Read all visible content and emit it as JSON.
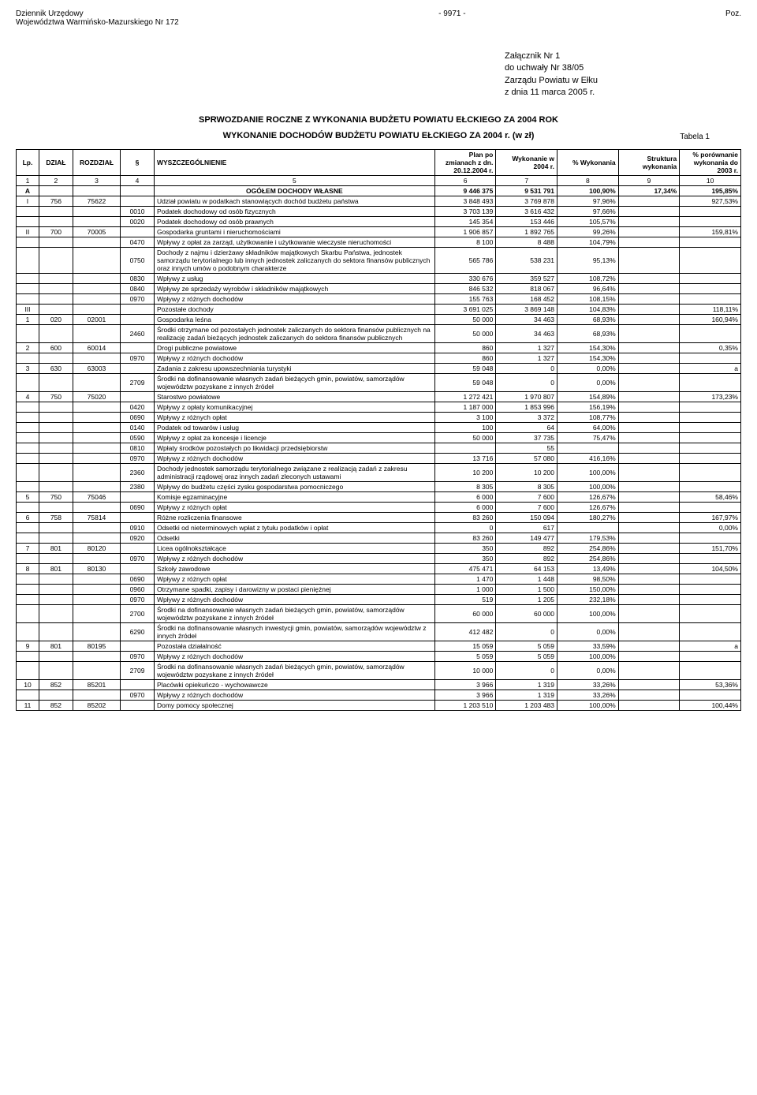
{
  "header": {
    "left1": "Dziennik Urzędowy",
    "left2": "Województwa Warmińsko-Mazurskiego Nr 172",
    "center": "- 9971 -",
    "right": "Poz."
  },
  "attachment": {
    "line1": "Załącznik Nr 1",
    "line2": "do uchwały Nr 38/05",
    "line3": "Zarządu Powiatu w Ełku",
    "line4": "z dnia 11 marca 2005 r."
  },
  "titles": {
    "main": "SPRWOZDANIE ROCZNE Z WYKONANIA BUDŻETU POWIATU EŁCKIEGO ZA 2004 ROK",
    "sub": "WYKONANIE DOCHODÓW BUDŻETU POWIATU EŁCKIEGO ZA 2004 r. (w zł)",
    "tabela": "Tabela 1"
  },
  "columns": {
    "c1": "Lp.",
    "c2": "DZIAŁ",
    "c3": "ROZDZIAŁ",
    "c4": "§",
    "c5": "WYSZCZEGÓLNIENIE",
    "c6": "Plan po zmianach z dn. 20.12.2004 r.",
    "c7": "Wykonanie w 2004 r.",
    "c8": "% Wykonania",
    "c9": "Struktura wykonania",
    "c10": "% porównanie wykonania do 2003 r."
  },
  "numrow": [
    "1",
    "2",
    "3",
    "4",
    "5",
    "6",
    "7",
    "8",
    "9",
    "10"
  ],
  "rows": [
    {
      "lp": "A",
      "d": "",
      "r": "",
      "p": "",
      "desc": "OGÓŁEM DOCHODY WŁASNE",
      "v1": "9 446 375",
      "v2": "9 531 791",
      "v3": "100,90%",
      "v4": "17,34%",
      "v5": "195,85%",
      "bold": true,
      "center": true
    },
    {
      "lp": "I",
      "d": "756",
      "r": "75622",
      "p": "",
      "desc": "Udział powiatu w podatkach stanowiących dochód budżetu państwa",
      "v1": "3 848 493",
      "v2": "3 769 878",
      "v3": "97,96%",
      "v4": "",
      "v5": "927,53%"
    },
    {
      "lp": "",
      "d": "",
      "r": "",
      "p": "0010",
      "desc": "Podatek dochodowy od osób fizycznych",
      "v1": "3 703 139",
      "v2": "3 616 432",
      "v3": "97,66%",
      "v4": "",
      "v5": ""
    },
    {
      "lp": "",
      "d": "",
      "r": "",
      "p": "0020",
      "desc": "Podatek dochodowy od osób prawnych",
      "v1": "145 354",
      "v2": "153 446",
      "v3": "105,57%",
      "v4": "",
      "v5": ""
    },
    {
      "lp": "II",
      "d": "700",
      "r": "70005",
      "p": "",
      "desc": "Gospodarka gruntami i nieruchomościami",
      "v1": "1 906 857",
      "v2": "1 892 765",
      "v3": "99,26%",
      "v4": "",
      "v5": "159,81%"
    },
    {
      "lp": "",
      "d": "",
      "r": "",
      "p": "0470",
      "desc": "Wpływy z opłat za zarząd, użytkowanie i użytkowanie wieczyste nieruchomości",
      "v1": "8 100",
      "v2": "8 488",
      "v3": "104,79%",
      "v4": "",
      "v5": ""
    },
    {
      "lp": "",
      "d": "",
      "r": "",
      "p": "0750",
      "desc": "Dochody z najmu i dzierżawy składników majątkowych Skarbu Państwa, jednostek samorządu terytorialnego lub innych jednostek zaliczanych do sektora finansów publicznych oraz innych umów o podobnym charakterze",
      "v1": "565 786",
      "v2": "538 231",
      "v3": "95,13%",
      "v4": "",
      "v5": ""
    },
    {
      "lp": "",
      "d": "",
      "r": "",
      "p": "0830",
      "desc": "Wpływy z usług",
      "v1": "330 676",
      "v2": "359 527",
      "v3": "108,72%",
      "v4": "",
      "v5": ""
    },
    {
      "lp": "",
      "d": "",
      "r": "",
      "p": "0840",
      "desc": "Wpływy ze sprzedaży wyrobów i składników majątkowych",
      "v1": "846 532",
      "v2": "818 067",
      "v3": "96,64%",
      "v4": "",
      "v5": ""
    },
    {
      "lp": "",
      "d": "",
      "r": "",
      "p": "0970",
      "desc": "Wpływy z różnych dochodów",
      "v1": "155 763",
      "v2": "168 452",
      "v3": "108,15%",
      "v4": "",
      "v5": ""
    },
    {
      "lp": "III",
      "d": "",
      "r": "",
      "p": "",
      "desc": "Pozostałe dochody",
      "v1": "3 691 025",
      "v2": "3 869 148",
      "v3": "104,83%",
      "v4": "",
      "v5": "118,11%"
    },
    {
      "lp": "1",
      "d": "020",
      "r": "02001",
      "p": "",
      "desc": "Gospodarka leśna",
      "v1": "50 000",
      "v2": "34 463",
      "v3": "68,93%",
      "v4": "",
      "v5": "160,94%"
    },
    {
      "lp": "",
      "d": "",
      "r": "",
      "p": "2460",
      "desc": "Środki otrzymane od pozostałych jednostek zaliczanych do sektora finansów publicznych na realizację zadań bieżących jednostek zaliczanych do sektora finansów publicznych",
      "v1": "50 000",
      "v2": "34 463",
      "v3": "68,93%",
      "v4": "",
      "v5": ""
    },
    {
      "lp": "2",
      "d": "600",
      "r": "60014",
      "p": "",
      "desc": "Drogi publiczne powiatowe",
      "v1": "860",
      "v2": "1 327",
      "v3": "154,30%",
      "v4": "",
      "v5": "0,35%"
    },
    {
      "lp": "",
      "d": "",
      "r": "",
      "p": "0970",
      "desc": "Wpływy z różnych dochodów",
      "v1": "860",
      "v2": "1 327",
      "v3": "154,30%",
      "v4": "",
      "v5": ""
    },
    {
      "lp": "3",
      "d": "630",
      "r": "63003",
      "p": "",
      "desc": "Zadania z zakresu upowszechniania turystyki",
      "v1": "59 048",
      "v2": "0",
      "v3": "0,00%",
      "v4": "",
      "v5": "a"
    },
    {
      "lp": "",
      "d": "",
      "r": "",
      "p": "2709",
      "desc": "Środki na dofinansowanie własnych zadań bieżących gmin, powiatów, samorządów województw pozyskane z innych źródeł",
      "v1": "59 048",
      "v2": "0",
      "v3": "0,00%",
      "v4": "",
      "v5": ""
    },
    {
      "lp": "4",
      "d": "750",
      "r": "75020",
      "p": "",
      "desc": "Starostwo powiatowe",
      "v1": "1 272 421",
      "v2": "1 970 807",
      "v3": "154,89%",
      "v4": "",
      "v5": "173,23%"
    },
    {
      "lp": "",
      "d": "",
      "r": "",
      "p": "0420",
      "desc": "Wpływy z opłaty komunikacyjnej",
      "v1": "1 187 000",
      "v2": "1 853 996",
      "v3": "156,19%",
      "v4": "",
      "v5": ""
    },
    {
      "lp": "",
      "d": "",
      "r": "",
      "p": "0690",
      "desc": "Wpływy z różnych opłat",
      "v1": "3 100",
      "v2": "3 372",
      "v3": "108,77%",
      "v4": "",
      "v5": ""
    },
    {
      "lp": "",
      "d": "",
      "r": "",
      "p": "0140",
      "desc": "Podatek od towarów i usług",
      "v1": "100",
      "v2": "64",
      "v3": "64,00%",
      "v4": "",
      "v5": ""
    },
    {
      "lp": "",
      "d": "",
      "r": "",
      "p": "0590",
      "desc": "Wpływy z opłat za koncesje i licencje",
      "v1": "50 000",
      "v2": "37 735",
      "v3": "75,47%",
      "v4": "",
      "v5": ""
    },
    {
      "lp": "",
      "d": "",
      "r": "",
      "p": "0810",
      "desc": "Wpłaty środków pozostałych po likwidacji przedsiębiorstw",
      "v1": "",
      "v2": "55",
      "v3": "",
      "v4": "",
      "v5": ""
    },
    {
      "lp": "",
      "d": "",
      "r": "",
      "p": "0970",
      "desc": "Wpływy z różnych dochodów",
      "v1": "13 716",
      "v2": "57 080",
      "v3": "416,16%",
      "v4": "",
      "v5": ""
    },
    {
      "lp": "",
      "d": "",
      "r": "",
      "p": "2360",
      "desc": "Dochody jednostek samorządu terytorialnego związane z realizacją zadań z zakresu administracji rządowej oraz innych zadań zleconych ustawami",
      "v1": "10 200",
      "v2": "10 200",
      "v3": "100,00%",
      "v4": "",
      "v5": ""
    },
    {
      "lp": "",
      "d": "",
      "r": "",
      "p": "2380",
      "desc": "Wpływy do budżetu części zysku gospodarstwa pomocniczego",
      "v1": "8 305",
      "v2": "8 305",
      "v3": "100,00%",
      "v4": "",
      "v5": ""
    },
    {
      "lp": "5",
      "d": "750",
      "r": "75046",
      "p": "",
      "desc": "Komisje egzaminacyjne",
      "v1": "6 000",
      "v2": "7 600",
      "v3": "126,67%",
      "v4": "",
      "v5": "58,46%"
    },
    {
      "lp": "",
      "d": "",
      "r": "",
      "p": "0690",
      "desc": "Wpływy z różnych opłat",
      "v1": "6 000",
      "v2": "7 600",
      "v3": "126,67%",
      "v4": "",
      "v5": ""
    },
    {
      "lp": "6",
      "d": "758",
      "r": "75814",
      "p": "",
      "desc": "Różne rozliczenia finansowe",
      "v1": "83 260",
      "v2": "150 094",
      "v3": "180,27%",
      "v4": "",
      "v5": "167,97%"
    },
    {
      "lp": "",
      "d": "",
      "r": "",
      "p": "0910",
      "desc": "Odsetki od nieterminowych wpłat z tytułu podatków i opłat",
      "v1": "0",
      "v2": "617",
      "v3": "",
      "v4": "",
      "v5": "0,00%"
    },
    {
      "lp": "",
      "d": "",
      "r": "",
      "p": "0920",
      "desc": "Odsetki",
      "v1": "83 260",
      "v2": "149 477",
      "v3": "179,53%",
      "v4": "",
      "v5": ""
    },
    {
      "lp": "7",
      "d": "801",
      "r": "80120",
      "p": "",
      "desc": "Licea ogólnokształcące",
      "v1": "350",
      "v2": "892",
      "v3": "254,86%",
      "v4": "",
      "v5": "151,70%"
    },
    {
      "lp": "",
      "d": "",
      "r": "",
      "p": "0970",
      "desc": "Wpływy z różnych dochodów",
      "v1": "350",
      "v2": "892",
      "v3": "254,86%",
      "v4": "",
      "v5": ""
    },
    {
      "lp": "8",
      "d": "801",
      "r": "80130",
      "p": "",
      "desc": "Szkoły zawodowe",
      "v1": "475 471",
      "v2": "64 153",
      "v3": "13,49%",
      "v4": "",
      "v5": "104,50%"
    },
    {
      "lp": "",
      "d": "",
      "r": "",
      "p": "0690",
      "desc": "Wpływy z różnych opłat",
      "v1": "1 470",
      "v2": "1 448",
      "v3": "98,50%",
      "v4": "",
      "v5": ""
    },
    {
      "lp": "",
      "d": "",
      "r": "",
      "p": "0960",
      "desc": "Otrzymane spadki, zapisy i darowizny w postaci pieniężnej",
      "v1": "1 000",
      "v2": "1 500",
      "v3": "150,00%",
      "v4": "",
      "v5": ""
    },
    {
      "lp": "",
      "d": "",
      "r": "",
      "p": "0970",
      "desc": "Wpływy z różnych dochodów",
      "v1": "519",
      "v2": "1 205",
      "v3": "232,18%",
      "v4": "",
      "v5": ""
    },
    {
      "lp": "",
      "d": "",
      "r": "",
      "p": "2700",
      "desc": "Środki na dofinansowanie własnych zadań bieżących gmin, powiatów, samorządów województw pozyskane z innych źródeł",
      "v1": "60 000",
      "v2": "60 000",
      "v3": "100,00%",
      "v4": "",
      "v5": ""
    },
    {
      "lp": "",
      "d": "",
      "r": "",
      "p": "6290",
      "desc": "Środki na dofinansowanie własnych inwestycji gmin, powiatów, samorządów województw z innych źródeł",
      "v1": "412 482",
      "v2": "0",
      "v3": "0,00%",
      "v4": "",
      "v5": ""
    },
    {
      "lp": "9",
      "d": "801",
      "r": "80195",
      "p": "",
      "desc": "Pozostała działalność",
      "v1": "15 059",
      "v2": "5 059",
      "v3": "33,59%",
      "v4": "",
      "v5": "a"
    },
    {
      "lp": "",
      "d": "",
      "r": "",
      "p": "0970",
      "desc": "Wpływy z różnych dochodów",
      "v1": "5 059",
      "v2": "5 059",
      "v3": "100,00%",
      "v4": "",
      "v5": ""
    },
    {
      "lp": "",
      "d": "",
      "r": "",
      "p": "2709",
      "desc": "Środki na dofinansowanie własnych zadań bieżących gmin, powiatów, samorządów województw pozyskane z innych źródeł",
      "v1": "10 000",
      "v2": "0",
      "v3": "0,00%",
      "v4": "",
      "v5": ""
    },
    {
      "lp": "10",
      "d": "852",
      "r": "85201",
      "p": "",
      "desc": "Placówki opiekuńczo - wychowawcze",
      "v1": "3 966",
      "v2": "1 319",
      "v3": "33,26%",
      "v4": "",
      "v5": "53,36%"
    },
    {
      "lp": "",
      "d": "",
      "r": "",
      "p": "0970",
      "desc": "Wpływy z różnych dochodów",
      "v1": "3 966",
      "v2": "1 319",
      "v3": "33,26%",
      "v4": "",
      "v5": ""
    },
    {
      "lp": "11",
      "d": "852",
      "r": "85202",
      "p": "",
      "desc": "Domy pomocy społecznej",
      "v1": "1 203 510",
      "v2": "1 203 483",
      "v3": "100,00%",
      "v4": "",
      "v5": "100,44%"
    }
  ]
}
